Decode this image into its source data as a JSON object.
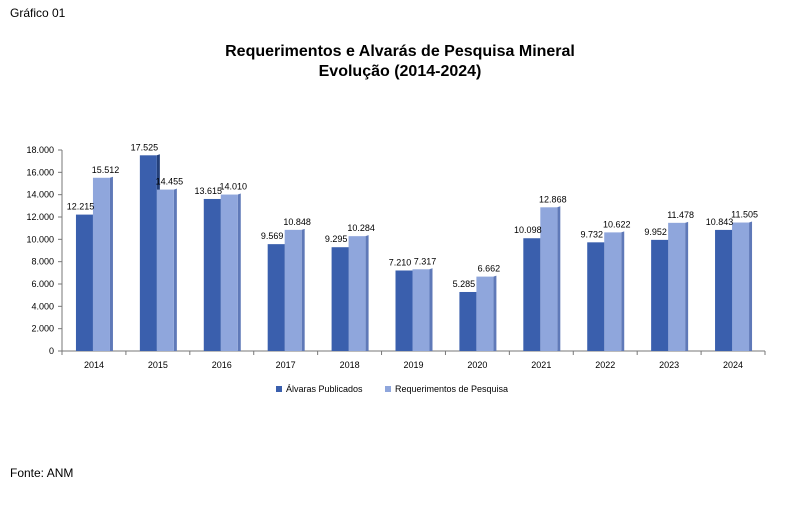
{
  "header": {
    "figure_label": "Gráfico 01"
  },
  "footer": {
    "source": "Fonte: ANM"
  },
  "chart_data": {
    "type": "bar",
    "title": "Requerimentos e Alvarás de Pesquisa Mineral",
    "subtitle": "Evolução (2014-2024)",
    "xlabel": "",
    "ylabel": "",
    "categories": [
      "2014",
      "2015",
      "2016",
      "2017",
      "2018",
      "2019",
      "2020",
      "2021",
      "2022",
      "2023",
      "2024"
    ],
    "ylim": [
      0,
      18000
    ],
    "yticks": [
      0,
      2000,
      4000,
      6000,
      8000,
      10000,
      12000,
      14000,
      16000,
      18000
    ],
    "ytick_labels": [
      "0",
      "2.000",
      "4.000",
      "6.000",
      "8.000",
      "10.000",
      "12.000",
      "14.000",
      "16.000",
      "18.000"
    ],
    "grid": false,
    "legend_position": "bottom",
    "series": [
      {
        "name": "Álvaras Publicados",
        "color": "#3a5fad",
        "values": [
          12215,
          17525,
          13615,
          9569,
          9295,
          7210,
          5285,
          10098,
          9732,
          9952,
          10843
        ],
        "labels": [
          "12.215",
          "17.525",
          "13.615",
          "9.569",
          "9.295",
          "7.210",
          "5.285",
          "10.098",
          "9.732",
          "9.952",
          "10.843"
        ]
      },
      {
        "name": "Requerimentos de Pesquisa",
        "color": "#8fa6dc",
        "values": [
          15512,
          14455,
          14010,
          10848,
          10284,
          7317,
          6662,
          12868,
          10622,
          11478,
          11505
        ],
        "labels": [
          "15.512",
          "14.455",
          "14.010",
          "10.848",
          "10.284",
          "7.317",
          "6.662",
          "12.868",
          "10.622",
          "11.478",
          "11.505"
        ]
      }
    ]
  }
}
